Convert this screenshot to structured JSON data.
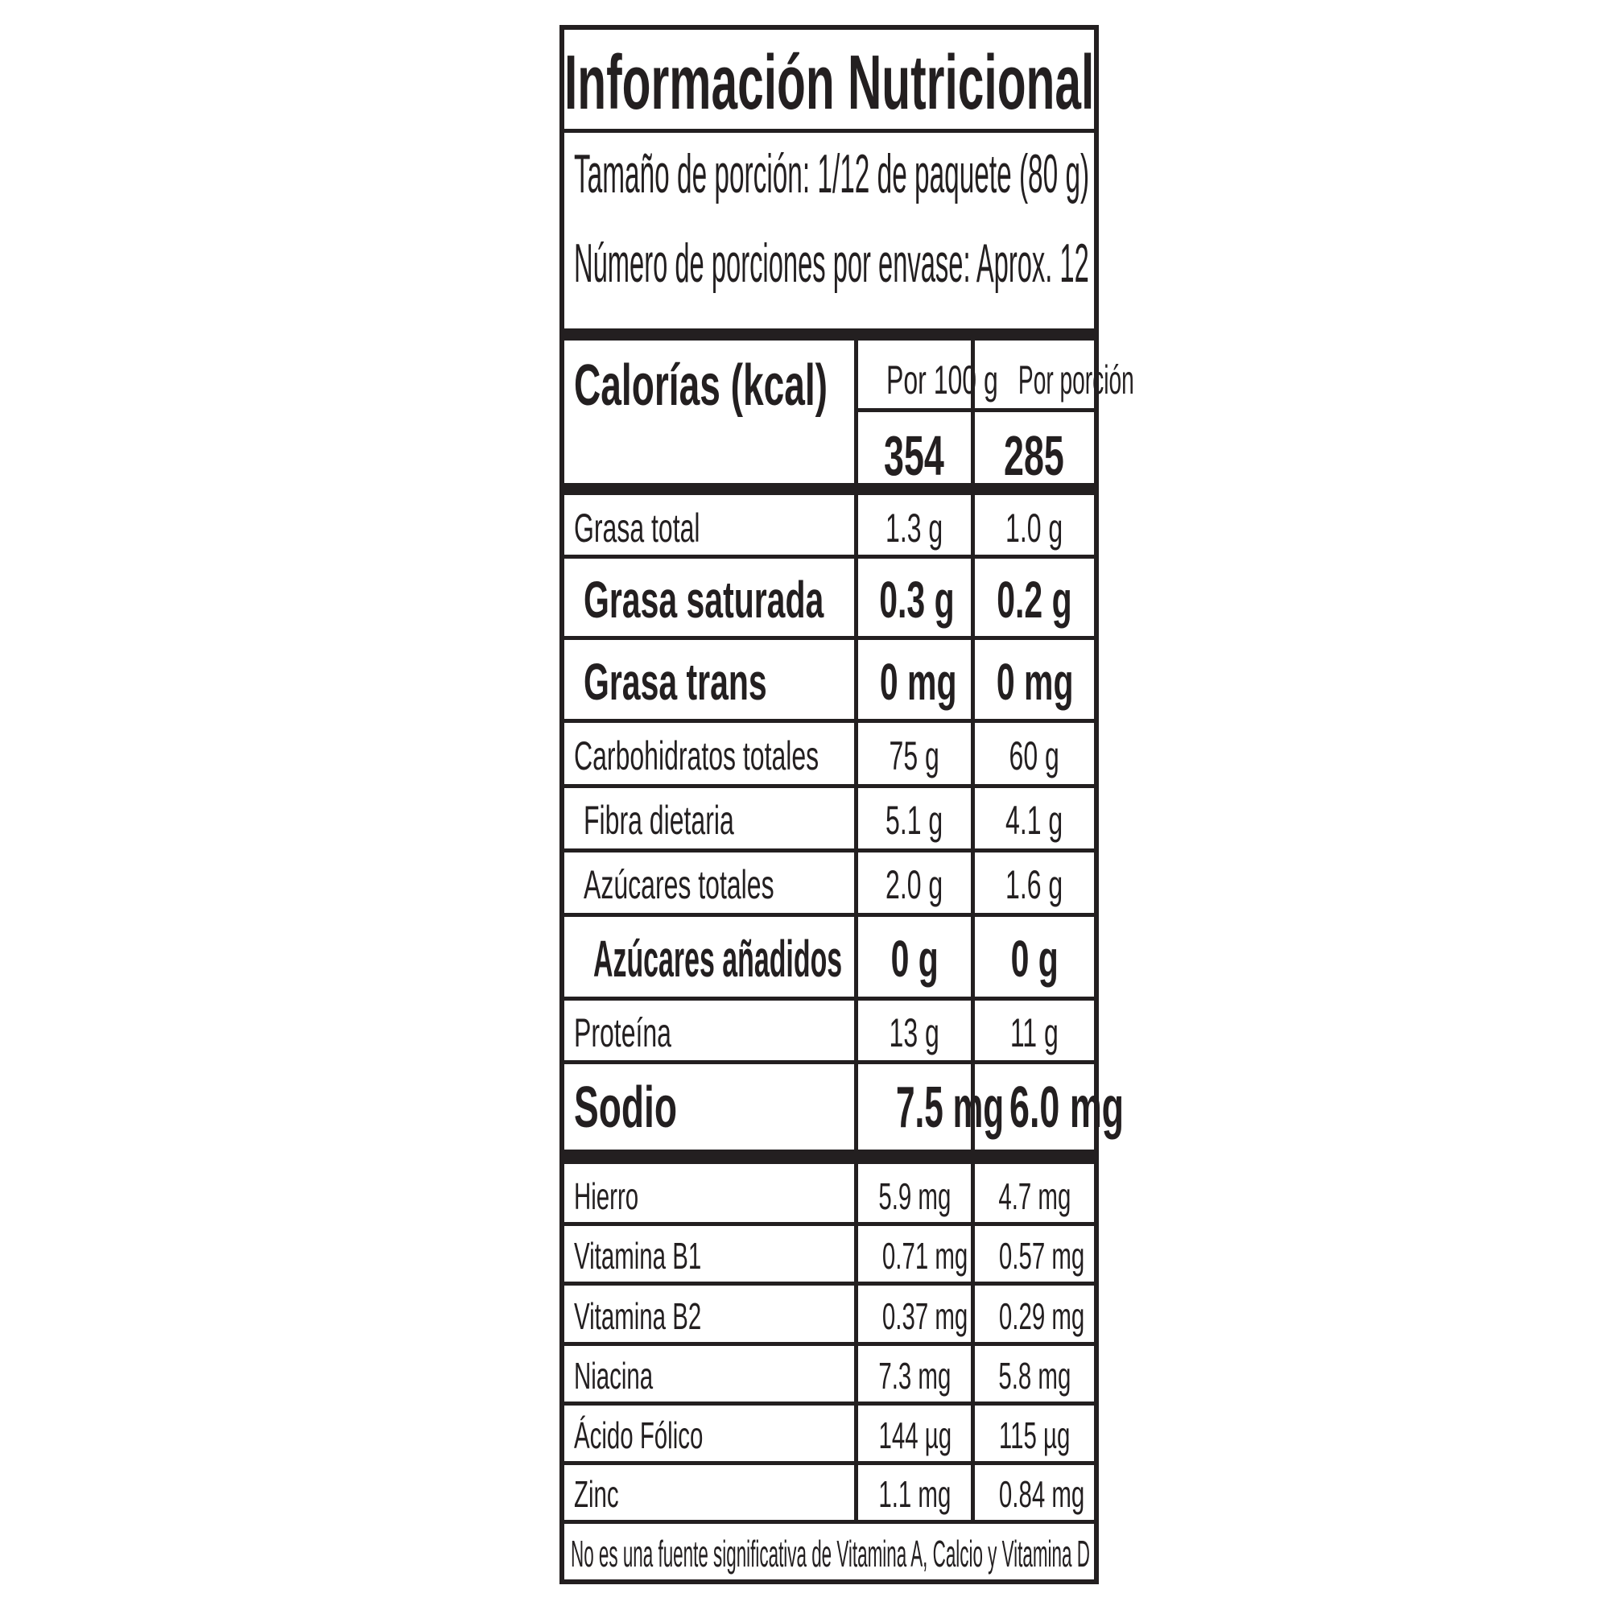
{
  "title": "Información Nutricional",
  "serving_size": "Tamaño de porción: 1/12 de paquete (80 g)",
  "servings_per_container": "Número de porciones por envase: Aprox. 12",
  "calories": {
    "label": "Calorías (kcal)",
    "col1_header": "Por 100 g",
    "col2_header": "Por porción",
    "per_100g": "354",
    "per_serving": "285"
  },
  "nutrients": [
    {
      "label": "Grasa total",
      "per_100g": "1.3 g",
      "per_serving": "1.0 g",
      "style": "regular"
    },
    {
      "label": "Grasa saturada",
      "per_100g": "0.3 g",
      "per_serving": "0.2 g",
      "style": "bold-indent"
    },
    {
      "label": "Grasa trans",
      "per_100g": "0 mg",
      "per_serving": "0 mg",
      "style": "bold-indent"
    },
    {
      "label": "Carbohidratos totales",
      "per_100g": "75 g",
      "per_serving": "60 g",
      "style": "regular"
    },
    {
      "label": "Fibra dietaria",
      "per_100g": "5.1 g",
      "per_serving": "4.1 g",
      "style": "indent"
    },
    {
      "label": "Azúcares totales",
      "per_100g": "2.0 g",
      "per_serving": "1.6 g",
      "style": "indent"
    },
    {
      "label": "Azúcares añadidos",
      "per_100g": "0 g",
      "per_serving": "0 g",
      "style": "bold-indent2"
    },
    {
      "label": "Proteína",
      "per_100g": "13 g",
      "per_serving": "11 g",
      "style": "regular"
    },
    {
      "label": "Sodio",
      "per_100g": "7.5 mg",
      "per_serving": "6.0 mg",
      "style": "bold-large"
    }
  ],
  "micronutrients": [
    {
      "label": "Hierro",
      "per_100g": "5.9 mg",
      "per_serving": "4.7 mg"
    },
    {
      "label": "Vitamina B1",
      "per_100g": "0.71 mg",
      "per_serving": "0.57 mg"
    },
    {
      "label": "Vitamina B2",
      "per_100g": "0.37 mg",
      "per_serving": "0.29 mg"
    },
    {
      "label": "Niacina",
      "per_100g": "7.3 mg",
      "per_serving": "5.8 mg"
    },
    {
      "label": "Ácido Fólico",
      "per_100g": "144 µg",
      "per_serving": "115 µg"
    },
    {
      "label": "Zinc",
      "per_100g": "1.1 mg",
      "per_serving": "0.84 mg"
    }
  ],
  "footnote": "No es una fuente significativa de Vitamina A, Calcio y Vitamina D",
  "colors": {
    "ink": "#231f20",
    "background": "#ffffff"
  }
}
